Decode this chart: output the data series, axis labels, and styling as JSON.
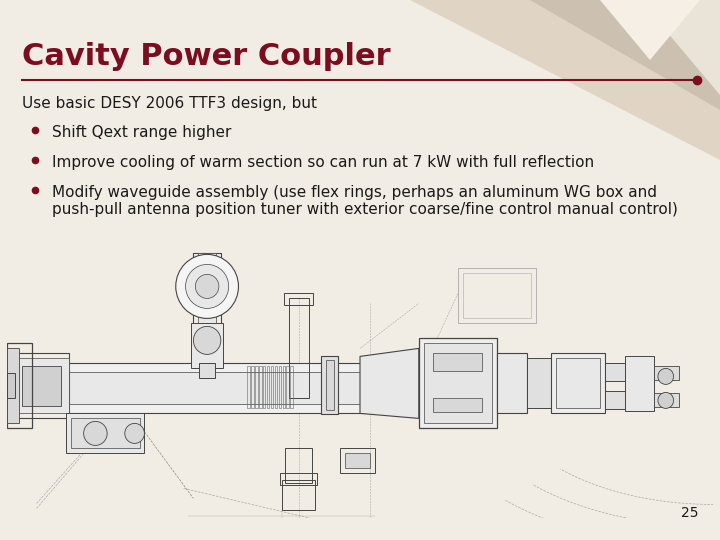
{
  "title": "Cavity Power Coupler",
  "title_color": "#7B0D1E",
  "title_fontsize": 22,
  "bg_color": "#F2EDE4",
  "line_color": "#7B0D1E",
  "text_color": "#1a1a1a",
  "bullet_color": "#7B0D1E",
  "intro_text": "Use basic DESY 2006 TTF3 design, but",
  "bullets": [
    "Shift Qext range higher",
    "Improve cooling of warm section so can run at 7 kW with full reflection",
    "Modify waveguide assembly (use flex rings, perhaps an aluminum WG box and\npush-pull antenna position tuner with exterior coarse/fine control manual control)"
  ],
  "page_number": "25",
  "font_size_body": 11,
  "font_size_intro": 11,
  "tri_colors": [
    "#E8DDD0",
    "#D9CCBE",
    "#EDE6DC",
    "#F0EAE2"
  ],
  "draw_color": "#444444",
  "draw_lw": 0.7
}
